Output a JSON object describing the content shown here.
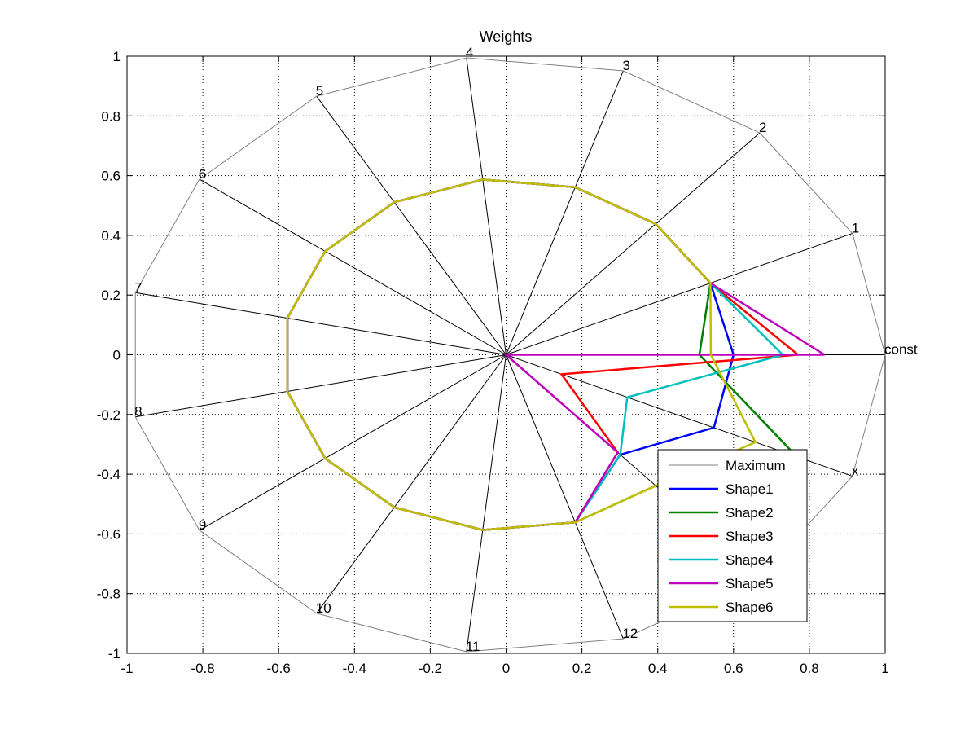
{
  "chart_data": {
    "type": "line",
    "title": "Weights",
    "xlim": [
      -1,
      1
    ],
    "ylim": [
      -1,
      1
    ],
    "xticks": [
      "-1",
      "-0.8",
      "-0.6",
      "-0.4",
      "-0.2",
      "0",
      "0.2",
      "0.4",
      "0.6",
      "0.8",
      "1"
    ],
    "yticks": [
      "1",
      "0.8",
      "0.6",
      "0.4",
      "0.2",
      "0",
      "-0.2",
      "-0.4",
      "-0.6",
      "-0.8",
      "-1"
    ],
    "grid": true,
    "legend_position": "bottom-right",
    "spoke_labels": [
      "const",
      "1",
      "2",
      "3",
      "4",
      "5",
      "6",
      "7",
      "8",
      "9",
      "10",
      "11",
      "12",
      "13",
      "x"
    ],
    "series": [
      {
        "name": "Maximum",
        "color": "#808080",
        "width": 1,
        "values": [
          1,
          1,
          1,
          1,
          1,
          1,
          1,
          1,
          1,
          1,
          1,
          1,
          1,
          1,
          1
        ]
      },
      {
        "name": "Shape1",
        "color": "#0000ff",
        "width": 2.5,
        "values": [
          0.6,
          0.59,
          0.59,
          0.59,
          0.59,
          0.59,
          0.59,
          0.59,
          0.59,
          0.59,
          0.59,
          0.59,
          0.59,
          0.45,
          0.6
        ]
      },
      {
        "name": "Shape2",
        "color": "#008000",
        "width": 2.5,
        "values": [
          0.51,
          0.59,
          0.59,
          0.59,
          0.59,
          0.59,
          0.59,
          0.59,
          0.59,
          0.59,
          0.59,
          0.59,
          0.59,
          0.59,
          0.84
        ]
      },
      {
        "name": "Shape3",
        "color": "#ff0000",
        "width": 2.5,
        "values": [
          0.77,
          0.59,
          0.59,
          0.59,
          0.59,
          0.59,
          0.59,
          0.59,
          0.59,
          0.59,
          0.59,
          0.59,
          0.59,
          0.44,
          0.16
        ]
      },
      {
        "name": "Shape4",
        "color": "#00bfbf",
        "width": 2.5,
        "values": [
          0.73,
          0.59,
          0.59,
          0.59,
          0.59,
          0.59,
          0.59,
          0.59,
          0.59,
          0.59,
          0.59,
          0.59,
          0.59,
          0.45,
          0.35
        ]
      },
      {
        "name": "Shape5",
        "color": "#bf00bf",
        "width": 2.5,
        "values": [
          0.84,
          0.59,
          0.59,
          0.59,
          0.59,
          0.59,
          0.59,
          0.59,
          0.59,
          0.59,
          0.59,
          0.59,
          0.59,
          0.44,
          0
        ]
      },
      {
        "name": "Shape6",
        "color": "#bfbf00",
        "width": 2.5,
        "values": [
          0.54,
          0.59,
          0.59,
          0.59,
          0.59,
          0.59,
          0.59,
          0.59,
          0.59,
          0.59,
          0.59,
          0.59,
          0.59,
          0.59,
          0.72
        ]
      }
    ]
  }
}
